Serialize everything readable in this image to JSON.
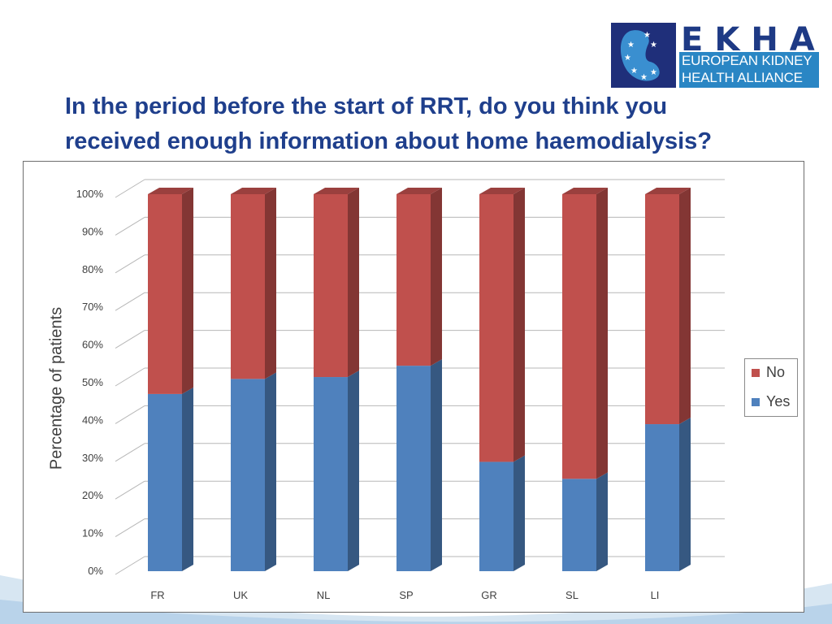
{
  "logo": {
    "name": "EKHA",
    "subtitle_line1": "EUROPEAN KIDNEY",
    "subtitle_line2": "HEALTH ALLIANCE"
  },
  "title": {
    "line1": "In the period before the start of RRT, do you think you",
    "line2": "received enough information about home haemodialysis?"
  },
  "chart_data": {
    "type": "bar",
    "stacked": true,
    "percent_stacked": true,
    "categories": [
      "FR",
      "UK",
      "NL",
      "SP",
      "GR",
      "SL",
      "LI"
    ],
    "series": [
      {
        "name": "Yes",
        "color": "#4f81bd",
        "values": [
          47,
          51,
          51.5,
          54.5,
          29,
          24.5,
          39
        ]
      },
      {
        "name": "No",
        "color": "#c0504d",
        "values": [
          53,
          49,
          48.5,
          45.5,
          71,
          75.5,
          61
        ]
      }
    ],
    "ylabel": "Percentage of patients",
    "ylim": [
      0,
      100
    ],
    "yticks": [
      "0%",
      "10%",
      "20%",
      "30%",
      "40%",
      "50%",
      "60%",
      "70%",
      "80%",
      "90%",
      "100%"
    ],
    "grid": true,
    "legend_position": "right",
    "legend_order": [
      "No",
      "Yes"
    ],
    "style": "3d-column"
  }
}
